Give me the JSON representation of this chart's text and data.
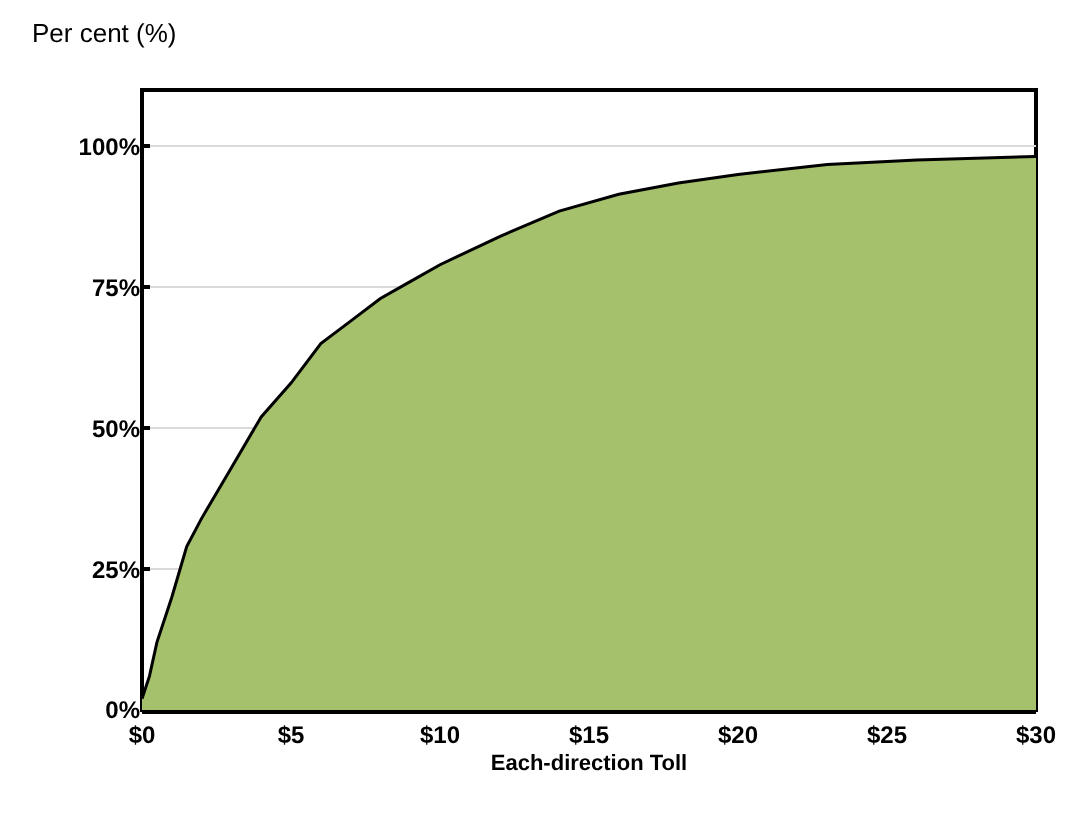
{
  "chart_data": {
    "type": "area",
    "xlabel": "Each-direction Toll",
    "ylabel": "Per cent (%)",
    "x": [
      0,
      0.25,
      0.5,
      1,
      1.5,
      2,
      3,
      4,
      5,
      6,
      7,
      8,
      9,
      10,
      12,
      14,
      16,
      18,
      20,
      23,
      26,
      30
    ],
    "series": [
      {
        "color": "#a6c16b",
        "values": [
          2,
          6,
          12,
          20,
          29,
          34,
          43,
          52,
          58,
          65,
          69,
          73,
          76,
          79,
          84,
          88.5,
          91.5,
          93.5,
          95,
          96.8,
          97.6,
          98.2
        ]
      }
    ],
    "xlim": [
      0,
      30
    ],
    "xticks": [
      {
        "value": 0,
        "label": "$0"
      },
      {
        "value": 5,
        "label": "$5"
      },
      {
        "value": 10,
        "label": "$10"
      },
      {
        "value": 15,
        "label": "$15"
      },
      {
        "value": 20,
        "label": "$20"
      },
      {
        "value": 25,
        "label": "$25"
      },
      {
        "value": 30,
        "label": "$30"
      }
    ],
    "ylim": [
      0,
      110
    ],
    "yticks": [
      {
        "value": 0,
        "label": "0%"
      },
      {
        "value": 25,
        "label": "25%"
      },
      {
        "value": 50,
        "label": "50%"
      },
      {
        "value": 75,
        "label": "75%"
      },
      {
        "value": 100,
        "label": "100%"
      }
    ],
    "grid": "y"
  }
}
